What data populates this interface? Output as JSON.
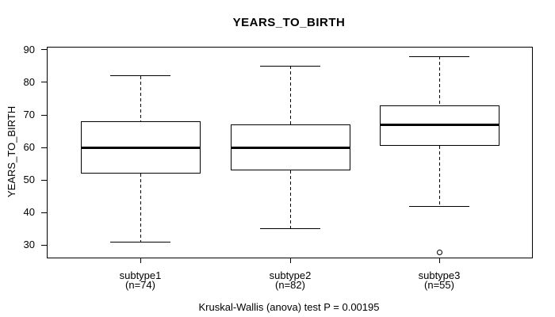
{
  "chart_data": {
    "type": "boxplot",
    "title": "YEARS_TO_BIRTH",
    "ylabel": "YEARS_TO_BIRTH",
    "xlabel": "",
    "ylim": [
      26.2,
      90.7
    ],
    "yticks": [
      30,
      40,
      50,
      60,
      70,
      80,
      90
    ],
    "grid": false,
    "legend": false,
    "groups": [
      {
        "label": "subtype1",
        "sublabel": "(n=74)",
        "n": 74,
        "whisker_low": 31,
        "q1": 52,
        "median": 60,
        "q3": 68,
        "whisker_high": 82,
        "outliers": []
      },
      {
        "label": "subtype2",
        "sublabel": "(n=82)",
        "n": 82,
        "whisker_low": 35,
        "q1": 53,
        "median": 60,
        "q3": 67,
        "whisker_high": 85,
        "outliers": []
      },
      {
        "label": "subtype3",
        "sublabel": "(n=55)",
        "n": 55,
        "whisker_low": 42,
        "q1": 60.5,
        "median": 67,
        "q3": 73,
        "whisker_high": 88,
        "outliers": [
          28
        ]
      }
    ],
    "caption": "Kruskal-Wallis (anova) test P = 0.00195"
  },
  "colors": {
    "line": "#000000",
    "background": "#ffffff"
  }
}
